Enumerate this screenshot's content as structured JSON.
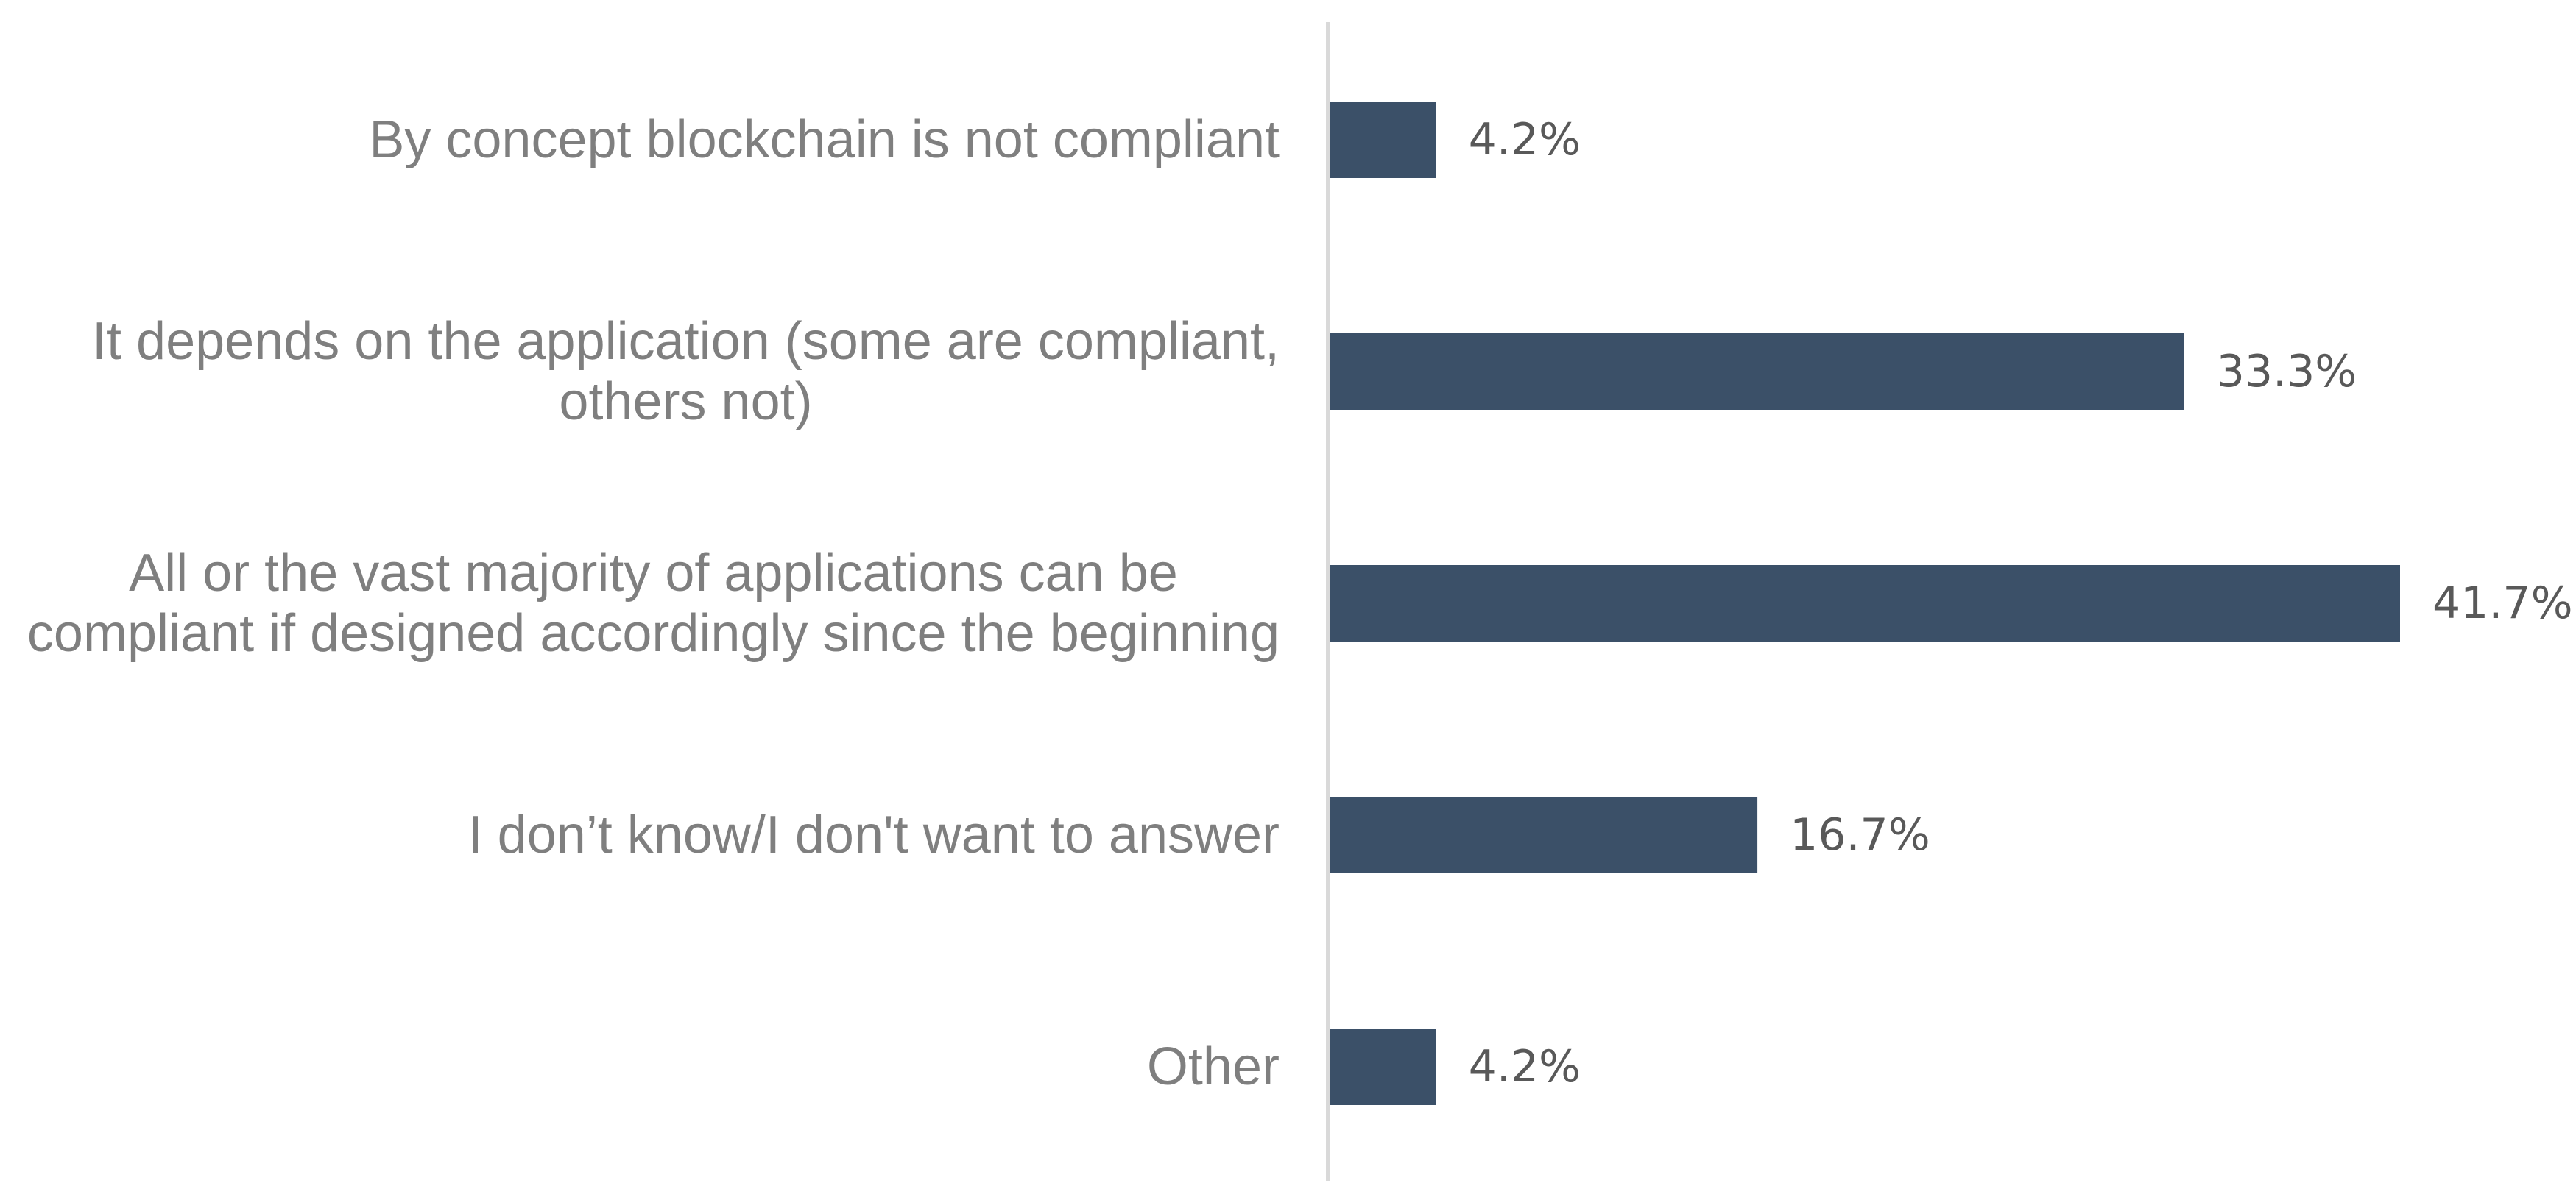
{
  "chart_data": {
    "type": "bar",
    "orientation": "horizontal",
    "title": "",
    "xlabel": "",
    "ylabel": "",
    "categories": [
      [
        "By concept blockchain is not compliant"
      ],
      [
        "It depends on the application (some are compliant,",
        "others not)"
      ],
      [
        "All or the vast majority of applications can be",
        "compliant if designed accordingly since the beginning"
      ],
      [
        "I don’t know/I don't want to answer"
      ],
      [
        "Other"
      ]
    ],
    "values": [
      4.2,
      33.3,
      41.7,
      16.7,
      4.2
    ],
    "value_labels": [
      "4.2%",
      "33.3%",
      "41.7%",
      "16.7%",
      "4.2%"
    ],
    "xlim": [
      0,
      41.7
    ],
    "grid": false,
    "legend": "none",
    "colors": {
      "bar": "#3b5068",
      "axis": "#d9d9d9",
      "category_text": "#7f7f7f",
      "value_text": "#595959"
    }
  }
}
